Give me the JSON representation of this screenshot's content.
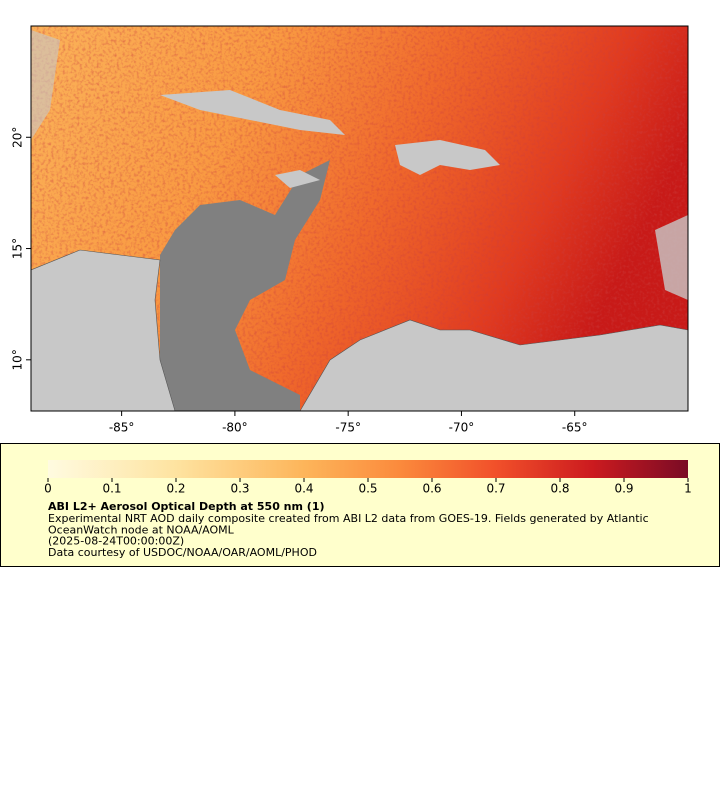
{
  "map": {
    "xlim": [
      -89,
      -60
    ],
    "ylim": [
      7.7,
      25
    ],
    "xticks": [
      {
        "value": -85,
        "label": "-85°"
      },
      {
        "value": -80,
        "label": "-80°"
      },
      {
        "value": -75,
        "label": "-75°"
      },
      {
        "value": -70,
        "label": "-70°"
      },
      {
        "value": -65,
        "label": "-65°"
      }
    ],
    "yticks": [
      {
        "value": 10,
        "label": "10°"
      },
      {
        "value": 15,
        "label": "15°"
      },
      {
        "value": 20,
        "label": "20°"
      }
    ]
  },
  "colorbar": {
    "lim": [
      0,
      1
    ],
    "ticks": [
      0,
      0.1,
      0.2,
      0.3,
      0.4,
      0.5,
      0.6,
      0.7,
      0.8,
      0.9,
      1
    ]
  },
  "caption": {
    "title": "ABI L2+ Aerosol Optical Depth at 550 nm (1)",
    "lines": [
      "Experimental NRT AOD daily composite created from ABI L2 data from GOES-19. Fields generated by Atlantic",
      "OceanWatch node at NOAA/AOML",
      "(2025-08-24T00:00:00Z)",
      "Data courtesy of USDOC/NOAA/OAR/AOML/PHOD"
    ]
  }
}
